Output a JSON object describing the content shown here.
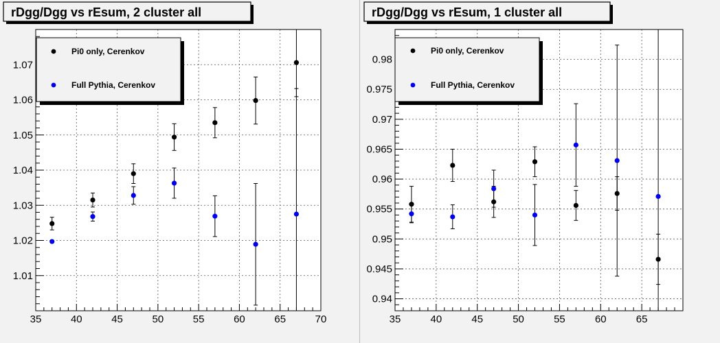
{
  "chart_data": [
    {
      "type": "scatter",
      "title": "rDgg/Dgg vs rEsum, 2 cluster all",
      "xlabel": "",
      "ylabel": "",
      "xlim": [
        35,
        70
      ],
      "ylim": [
        1.0,
        1.08
      ],
      "x_ticks": [
        35,
        40,
        45,
        50,
        55,
        60,
        65,
        70
      ],
      "x_tick_labels": [
        "35",
        "40",
        "45",
        "50",
        "55",
        "60",
        "65",
        "70"
      ],
      "y_ticks": [
        1.01,
        1.02,
        1.03,
        1.04,
        1.05,
        1.06,
        1.07
      ],
      "y_tick_labels": [
        "1.01",
        "1.02",
        "1.03",
        "1.04",
        "1.05",
        "1.06",
        "1.07"
      ],
      "grid": true,
      "legend_position": "top-left",
      "series": [
        {
          "name": "Pi0 only, Cerenkov",
          "color": "#000000",
          "x": [
            37,
            42,
            47,
            52,
            57,
            62,
            67
          ],
          "y": [
            1.0248,
            1.0315,
            1.039,
            1.0494,
            1.0535,
            1.0598,
            1.0706
          ],
          "err": [
            0.0018,
            0.002,
            0.0028,
            0.0038,
            0.0043,
            0.0067,
            0.0097
          ]
        },
        {
          "name": "Full Pythia, Cerenkov",
          "color": "#0000ee",
          "x": [
            37,
            42,
            47,
            52,
            57,
            62,
            67
          ],
          "y": [
            1.0197,
            1.0268,
            1.0328,
            1.0363,
            1.0269,
            1.0189,
            1.0275
          ],
          "err": [
            0.0,
            0.0013,
            0.0025,
            0.0043,
            0.0058,
            0.0173,
            0.0357
          ]
        }
      ]
    },
    {
      "type": "scatter",
      "title": "rDgg/Dgg vs rEsum, 1 cluster all",
      "xlabel": "",
      "ylabel": "",
      "xlim": [
        35,
        70
      ],
      "ylim": [
        0.938,
        0.985
      ],
      "x_ticks": [
        35,
        40,
        45,
        50,
        55,
        60,
        65
      ],
      "x_tick_labels": [
        "35",
        "40",
        "45",
        "50",
        "55",
        "60",
        "65"
      ],
      "y_ticks": [
        0.94,
        0.945,
        0.95,
        0.955,
        0.96,
        0.965,
        0.97,
        0.975,
        0.98
      ],
      "y_tick_labels": [
        "0.94",
        "0.945",
        "0.95",
        "0.955",
        "0.96",
        "0.965",
        "0.97",
        "0.975",
        "0.98"
      ],
      "grid": true,
      "legend_position": "top-left",
      "series": [
        {
          "name": "Pi0 only, Cerenkov",
          "color": "#000000",
          "x": [
            37,
            42,
            47,
            52,
            57,
            62,
            67
          ],
          "y": [
            0.9558,
            0.9623,
            0.9562,
            0.9629,
            0.9556,
            0.9576,
            0.9466
          ],
          "err": [
            0.003,
            0.0027,
            0.0026,
            0.0025,
            0.0025,
            0.0028,
            0.0042
          ]
        },
        {
          "name": "Full Pythia, Cerenkov",
          "color": "#0000ee",
          "x": [
            37,
            42,
            47,
            52,
            57,
            62,
            67
          ],
          "y": [
            0.9542,
            0.9537,
            0.9584,
            0.954,
            0.9657,
            0.9631,
            0.9571
          ],
          "err": [
            0.0015,
            0.002,
            0.0031,
            0.0051,
            0.0069,
            0.0193,
            0.0365
          ]
        }
      ]
    }
  ]
}
